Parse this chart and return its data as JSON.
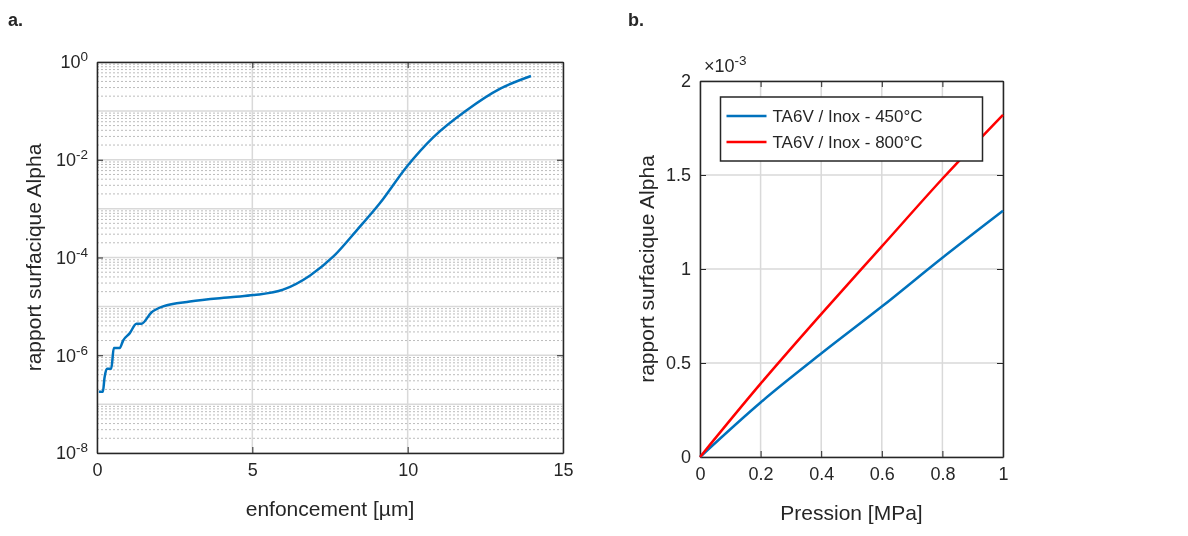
{
  "chart_data": [
    {
      "type": "line",
      "title": "a.",
      "xlabel": "enfoncement [µm]",
      "ylabel": "rapport surfacique Alpha",
      "log": "y",
      "grid": true,
      "legend": false,
      "marker": "none",
      "line_style": "solid",
      "xlim": [
        0,
        15
      ],
      "xticks": [
        0,
        5,
        10,
        15
      ],
      "ylim": [
        1e-08,
        1
      ],
      "yticks": [
        {
          "value": 1e-08,
          "label": "10$^{-8}$"
        },
        {
          "value": 1e-06,
          "label": "10$^{-6}$"
        },
        {
          "value": 0.0001,
          "label": "10$^{-4}$"
        },
        {
          "value": 0.01,
          "label": "10$^{-2}$"
        },
        {
          "value": 1,
          "label": "10$^{0}$"
        }
      ],
      "series": [
        {
          "color": "#0072bd",
          "x": [
            0.06,
            0.19,
            0.24,
            0.32,
            0.46,
            0.54,
            0.73,
            0.84,
            1.05,
            1.27,
            1.43,
            1.75,
            2.13,
            2.99,
            4.38,
            5.03,
            5.99,
            6.86,
            7.61,
            8.36,
            9.11,
            9.97,
            10.83,
            11.9,
            12.98,
            13.97
          ],
          "values": [
            1.8e-07,
            1.8e-07,
            3.4e-07,
            5.3e-07,
            5.3e-07,
            1.4e-06,
            1.4e-06,
            2e-06,
            2.8e-06,
            4.4e-06,
            4.4e-06,
            7.5e-06,
            1e-05,
            1.26e-05,
            1.55e-05,
            1.7e-05,
            2.2e-05,
            4.3e-05,
            0.000105,
            0.00036,
            0.0013,
            0.0072,
            0.029,
            0.103,
            0.285,
            0.518
          ]
        }
      ]
    },
    {
      "type": "line",
      "title": "b.",
      "xlabel": "Pression [MPa]",
      "ylabel": "rapport surfacique Alpha",
      "grid": true,
      "legend": "top",
      "marker": "none",
      "line_style": "solid",
      "annotations": [
        "×10$^{-3}$"
      ],
      "xlim": [
        0,
        1
      ],
      "xticks": [
        0,
        0.2,
        0.4,
        0.6,
        0.8,
        1
      ],
      "ylim": [
        0,
        2
      ],
      "yticks": [
        0,
        0.5,
        1,
        1.5,
        2
      ],
      "x": [
        0,
        0.2,
        0.4,
        0.6,
        0.8,
        1
      ],
      "series": [
        {
          "name": "TA6V / Inox - 450°C",
          "color": "#0072bd",
          "values": [
            0,
            0.29,
            0.55,
            0.8,
            1.06,
            1.31
          ]
        },
        {
          "name": "TA6V / Inox - 800°C",
          "color": "#ff0000",
          "values": [
            0,
            0.39,
            0.76,
            1.12,
            1.48,
            1.82
          ]
        }
      ]
    }
  ]
}
